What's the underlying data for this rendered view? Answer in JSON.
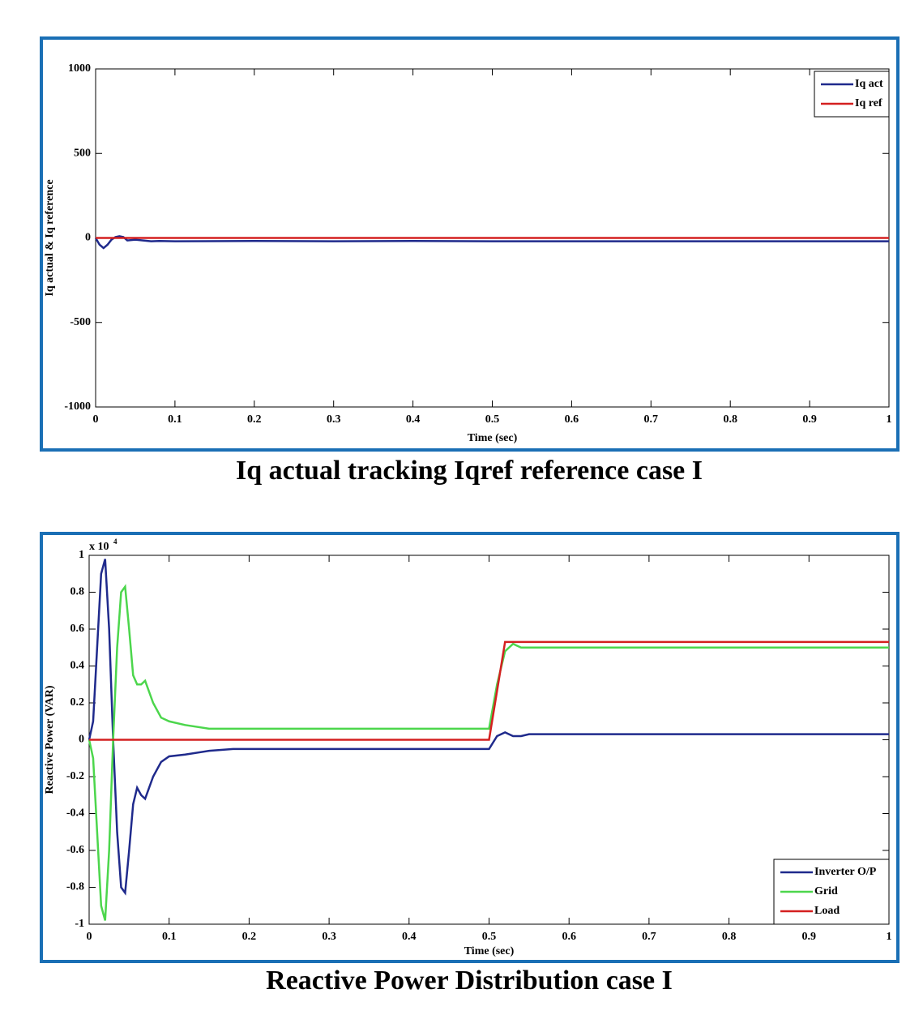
{
  "chart_data": [
    {
      "type": "line",
      "caption": "Iq actual tracking Iqref reference case I",
      "x_label": "Time (sec)",
      "y_label": "Iq actual & Iq reference",
      "xlim": [
        0,
        1
      ],
      "xticks": [
        0,
        0.1,
        0.2,
        0.3,
        0.4,
        0.5,
        0.6,
        0.7,
        0.8,
        0.9,
        1
      ],
      "ylim": [
        -1000,
        1000
      ],
      "yticks": [
        1000,
        500,
        0,
        -500,
        -1000
      ],
      "grid": false,
      "legend": "upper right",
      "series": [
        {
          "name": "Iq act",
          "color": "#1f2a8c",
          "x": [
            0,
            0.005,
            0.01,
            0.015,
            0.02,
            0.025,
            0.03,
            0.035,
            0.04,
            0.05,
            0.06,
            0.07,
            0.08,
            0.1,
            0.2,
            0.3,
            0.4,
            0.5,
            0.6,
            0.7,
            0.8,
            0.9,
            1
          ],
          "values": [
            0,
            -40,
            -60,
            -40,
            -10,
            5,
            10,
            5,
            -15,
            -10,
            -15,
            -20,
            -18,
            -20,
            -18,
            -20,
            -18,
            -20,
            -20,
            -20,
            -20,
            -20,
            -20
          ]
        },
        {
          "name": "Iq ref",
          "color": "#d42020",
          "x": [
            0,
            1
          ],
          "values": [
            0,
            0
          ]
        }
      ]
    },
    {
      "type": "line",
      "caption": "Reactive Power Distribution case I",
      "x_label": "Time (sec)",
      "y_label": "Reactive Power (VAR)",
      "y_multiplier": {
        "base": "x 10",
        "exponent": "4"
      },
      "xlim": [
        0,
        1
      ],
      "xticks": [
        0,
        0.1,
        0.2,
        0.3,
        0.4,
        0.5,
        0.6,
        0.7,
        0.8,
        0.9,
        1
      ],
      "ylim": [
        -1,
        1
      ],
      "yticks": [
        1,
        0.8,
        0.6,
        0.4,
        0.2,
        0,
        -0.2,
        -0.4,
        -0.6,
        -0.8,
        -1
      ],
      "grid": false,
      "legend": "lower right",
      "series": [
        {
          "name": "Inverter O/P",
          "color": "#1f2a8c",
          "x": [
            0,
            0.005,
            0.01,
            0.015,
            0.02,
            0.025,
            0.03,
            0.035,
            0.04,
            0.045,
            0.05,
            0.055,
            0.06,
            0.065,
            0.07,
            0.08,
            0.09,
            0.1,
            0.12,
            0.15,
            0.18,
            0.2,
            0.5,
            0.51,
            0.52,
            0.53,
            0.54,
            0.55,
            0.56,
            0.6,
            1
          ],
          "values": [
            0,
            0.1,
            0.5,
            0.9,
            0.98,
            0.6,
            0,
            -0.5,
            -0.8,
            -0.83,
            -0.6,
            -0.35,
            -0.26,
            -0.3,
            -0.32,
            -0.2,
            -0.12,
            -0.09,
            -0.08,
            -0.06,
            -0.05,
            -0.05,
            -0.05,
            0.02,
            0.04,
            0.02,
            0.02,
            0.03,
            0.03,
            0.03,
            0.03
          ]
        },
        {
          "name": "Grid",
          "color": "#4cd64c",
          "x": [
            0,
            0.005,
            0.01,
            0.015,
            0.02,
            0.025,
            0.03,
            0.035,
            0.04,
            0.045,
            0.05,
            0.055,
            0.06,
            0.065,
            0.07,
            0.08,
            0.09,
            0.1,
            0.12,
            0.15,
            0.18,
            0.2,
            0.5,
            0.51,
            0.52,
            0.53,
            0.54,
            0.55,
            0.56,
            0.6,
            1
          ],
          "values": [
            0,
            -0.1,
            -0.5,
            -0.9,
            -0.98,
            -0.6,
            0,
            0.5,
            0.8,
            0.83,
            0.6,
            0.35,
            0.3,
            0.3,
            0.32,
            0.2,
            0.12,
            0.1,
            0.08,
            0.06,
            0.06,
            0.06,
            0.06,
            0.3,
            0.48,
            0.52,
            0.5,
            0.5,
            0.5,
            0.5,
            0.5
          ]
        },
        {
          "name": "Load",
          "color": "#d42020",
          "x": [
            0,
            0.5,
            0.52,
            1
          ],
          "values": [
            0,
            0,
            0.53,
            0.53
          ]
        }
      ]
    }
  ]
}
